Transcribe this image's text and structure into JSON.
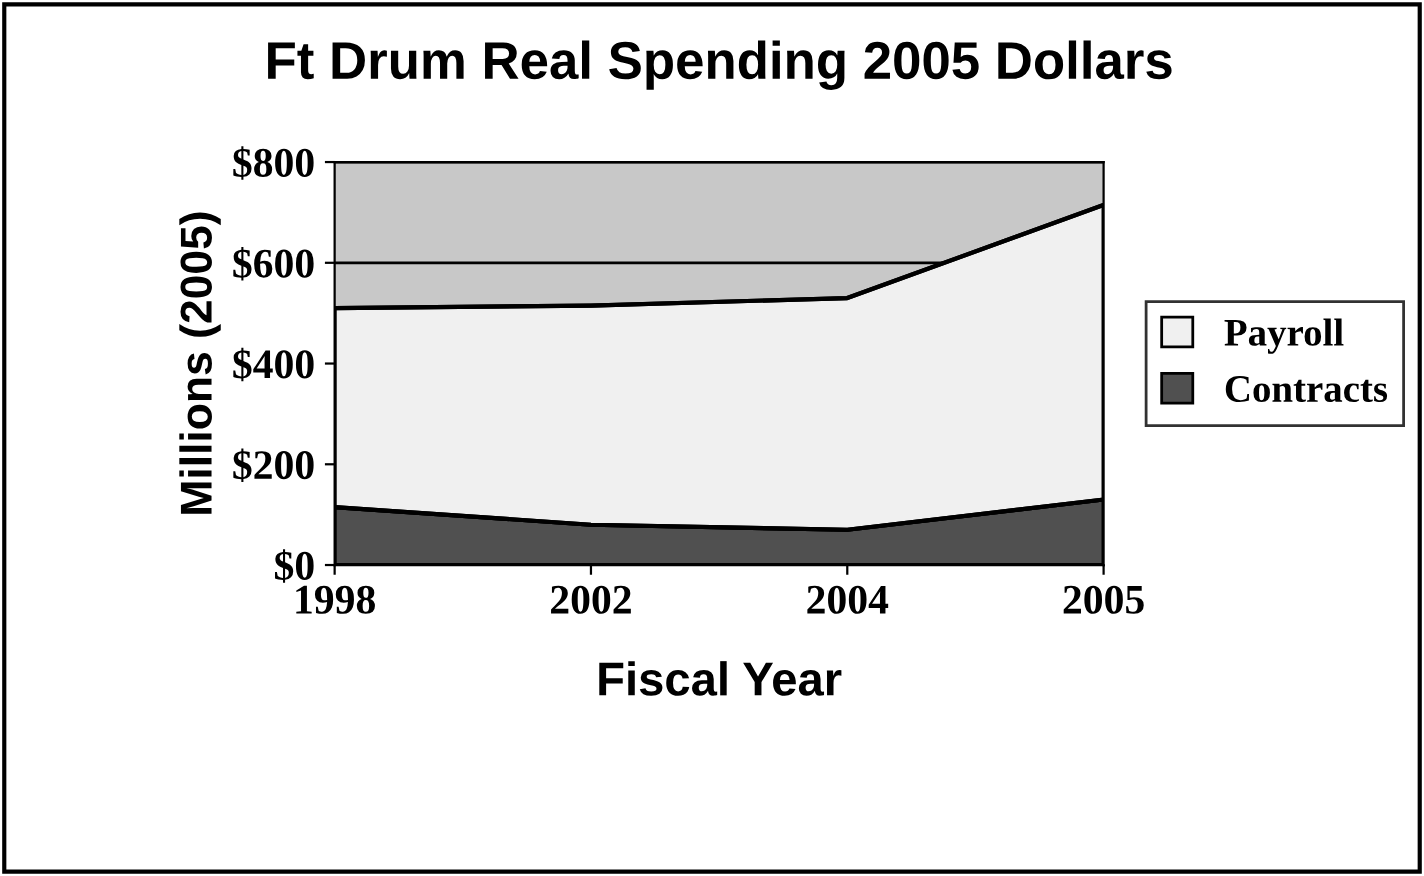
{
  "chart_data": {
    "type": "area",
    "title": "Ft Drum Real Spending 2005 Dollars",
    "xlabel": "Fiscal Year",
    "ylabel": "Millions (2005)",
    "categories": [
      "1998",
      "2002",
      "2004",
      "2005"
    ],
    "stacked": true,
    "series": [
      {
        "name": "Contracts",
        "color": "#505050",
        "values": [
          115,
          80,
          70,
          130
        ]
      },
      {
        "name": "Payroll",
        "color": "#f0f0f0",
        "values": [
          395,
          435,
          460,
          585
        ]
      }
    ],
    "ylim": [
      0,
      800
    ],
    "yticks": [
      {
        "value": 0,
        "label": "$0"
      },
      {
        "value": 200,
        "label": "$200"
      },
      {
        "value": 400,
        "label": "$400"
      },
      {
        "value": 600,
        "label": "$600"
      },
      {
        "value": 800,
        "label": "$800"
      }
    ],
    "grid": "y",
    "legend": "right"
  }
}
